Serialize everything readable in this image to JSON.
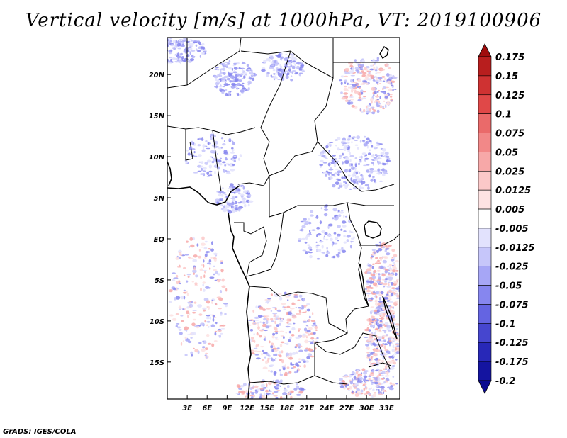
{
  "title": "Vertical velocity [m/s] at 1000hPa, VT: 2019100906",
  "credit": "GrADS: IGES/COLA",
  "map": {
    "lat_range": [
      -19.5,
      24.5
    ],
    "lon_range": [
      0,
      35
    ],
    "lat_ticks": [
      {
        "value": 20,
        "label": "20N"
      },
      {
        "value": 15,
        "label": "15N"
      },
      {
        "value": 10,
        "label": "10N"
      },
      {
        "value": 5,
        "label": "5N"
      },
      {
        "value": 0,
        "label": "EQ"
      },
      {
        "value": -5,
        "label": "5S"
      },
      {
        "value": -10,
        "label": "10S"
      },
      {
        "value": -15,
        "label": "15S"
      }
    ],
    "lon_ticks": [
      {
        "value": 3,
        "label": "3E"
      },
      {
        "value": 6,
        "label": "6E"
      },
      {
        "value": 9,
        "label": "9E"
      },
      {
        "value": 12,
        "label": "12E"
      },
      {
        "value": 15,
        "label": "15E"
      },
      {
        "value": 18,
        "label": "18E"
      },
      {
        "value": 21,
        "label": "21E"
      },
      {
        "value": 24,
        "label": "24E"
      },
      {
        "value": 27,
        "label": "27E"
      },
      {
        "value": 30,
        "label": "30E"
      },
      {
        "value": 33,
        "label": "33E"
      }
    ]
  },
  "colorbar": {
    "levels": [
      {
        "label": "0.175",
        "color": "#a00c0c"
      },
      {
        "label": "0.15",
        "color": "#b81e1e"
      },
      {
        "label": "0.125",
        "color": "#cf3232"
      },
      {
        "label": "0.1",
        "color": "#e04848"
      },
      {
        "label": "0.075",
        "color": "#ea6a6a"
      },
      {
        "label": "0.05",
        "color": "#f28888"
      },
      {
        "label": "0.025",
        "color": "#f7a8a8"
      },
      {
        "label": "0.0125",
        "color": "#fbc8c8"
      },
      {
        "label": "0.005",
        "color": "#fde2e2"
      },
      {
        "label": "-0.005",
        "color": "#ffffff"
      },
      {
        "label": "-0.0125",
        "color": "#e2e2fd"
      },
      {
        "label": "-0.025",
        "color": "#c6c6fa"
      },
      {
        "label": "-0.05",
        "color": "#a6a6f6"
      },
      {
        "label": "-0.075",
        "color": "#8686ef"
      },
      {
        "label": "-0.1",
        "color": "#6464e2"
      },
      {
        "label": "-0.125",
        "color": "#4646cf"
      },
      {
        "label": "-0.175",
        "color": "#2828b8"
      },
      {
        "label": "-0.2",
        "color": "#1414a0"
      }
    ],
    "bottom_color": "#0a0a90"
  }
}
